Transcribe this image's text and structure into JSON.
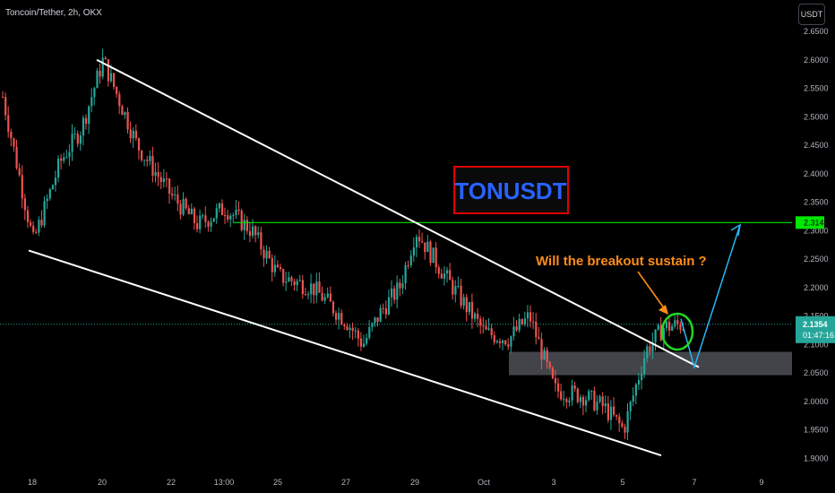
{
  "header": {
    "symbol_line": "Toncoin/Tether, 2h, OKX",
    "currency_button": "USDT"
  },
  "price_scale": {
    "current_price": "2.1354",
    "countdown": "01:47:16",
    "target_label": "2.3141",
    "current_color": "#26a69a",
    "target_color": "#00e600"
  },
  "annotations": {
    "title": "TONUSDT",
    "question": "Will the breakout sustain ?"
  },
  "colors": {
    "up": "#26a69a",
    "down": "#ef5350",
    "background": "#000000",
    "channel": "#ffffff",
    "resistance": "#00e600",
    "zone": "#787b86",
    "projection": "#29b6f6",
    "question": "#ff8c1a",
    "title_text": "#2962ff",
    "title_border": "#e00000"
  },
  "chart_data": {
    "type": "candlestick",
    "title": "",
    "timeframe": "2h",
    "ylim": [
      1.9,
      2.66
    ],
    "yticks": [
      "2.6500",
      "2.6000",
      "2.5500",
      "2.5000",
      "2.4500",
      "2.4000",
      "2.3500",
      "2.3000",
      "2.2500",
      "2.2000",
      "2.1500",
      "2.1000",
      "2.0500",
      "2.0000",
      "1.9500",
      "1.9000"
    ],
    "xticks": [
      "18",
      "20",
      "22",
      "13:00",
      "25",
      "27",
      "29",
      "Oct",
      "3",
      "5",
      "7",
      "9"
    ],
    "price_path": [
      {
        "x": "17",
        "close": 2.55
      },
      {
        "x": "18",
        "close": 2.28
      },
      {
        "x": "19",
        "close": 2.42
      },
      {
        "x": "19.5",
        "close": 2.48
      },
      {
        "x": "20",
        "close": 2.6
      },
      {
        "x": "21",
        "close": 2.45
      },
      {
        "x": "22",
        "close": 2.36
      },
      {
        "x": "22.5",
        "close": 2.31
      },
      {
        "x": "13:00",
        "close": 2.34
      },
      {
        "x": "24",
        "close": 2.3
      },
      {
        "x": "25",
        "close": 2.22
      },
      {
        "x": "26",
        "close": 2.2
      },
      {
        "x": "27",
        "close": 2.14
      },
      {
        "x": "27.5",
        "close": 2.1
      },
      {
        "x": "28",
        "close": 2.16
      },
      {
        "x": "28.5",
        "close": 2.2
      },
      {
        "x": "29",
        "close": 2.3
      },
      {
        "x": "30",
        "close": 2.21
      },
      {
        "x": "Oct",
        "close": 2.12
      },
      {
        "x": "2",
        "close": 2.11
      },
      {
        "x": "2.5",
        "close": 2.15
      },
      {
        "x": "3",
        "close": 2.02
      },
      {
        "x": "4",
        "close": 2.01
      },
      {
        "x": "4.5",
        "close": 1.99
      },
      {
        "x": "5",
        "close": 1.95
      },
      {
        "x": "5.5",
        "close": 2.09
      },
      {
        "x": "6",
        "close": 2.13
      },
      {
        "x": "6.5",
        "close": 2.1354
      }
    ],
    "current_price": 2.1354,
    "resistance_level": 2.3141,
    "support_zone": [
      2.046,
      2.087
    ],
    "channel_upper": {
      "from": [
        "20",
        2.6
      ],
      "to": [
        "6.5",
        2.06
      ]
    },
    "channel_lower": {
      "from": [
        "18",
        2.265
      ],
      "to": [
        "7",
        1.905
      ]
    },
    "projection": [
      [
        "6.5",
        2.145
      ],
      [
        "7",
        2.06
      ],
      [
        "8",
        2.31
      ]
    ]
  }
}
